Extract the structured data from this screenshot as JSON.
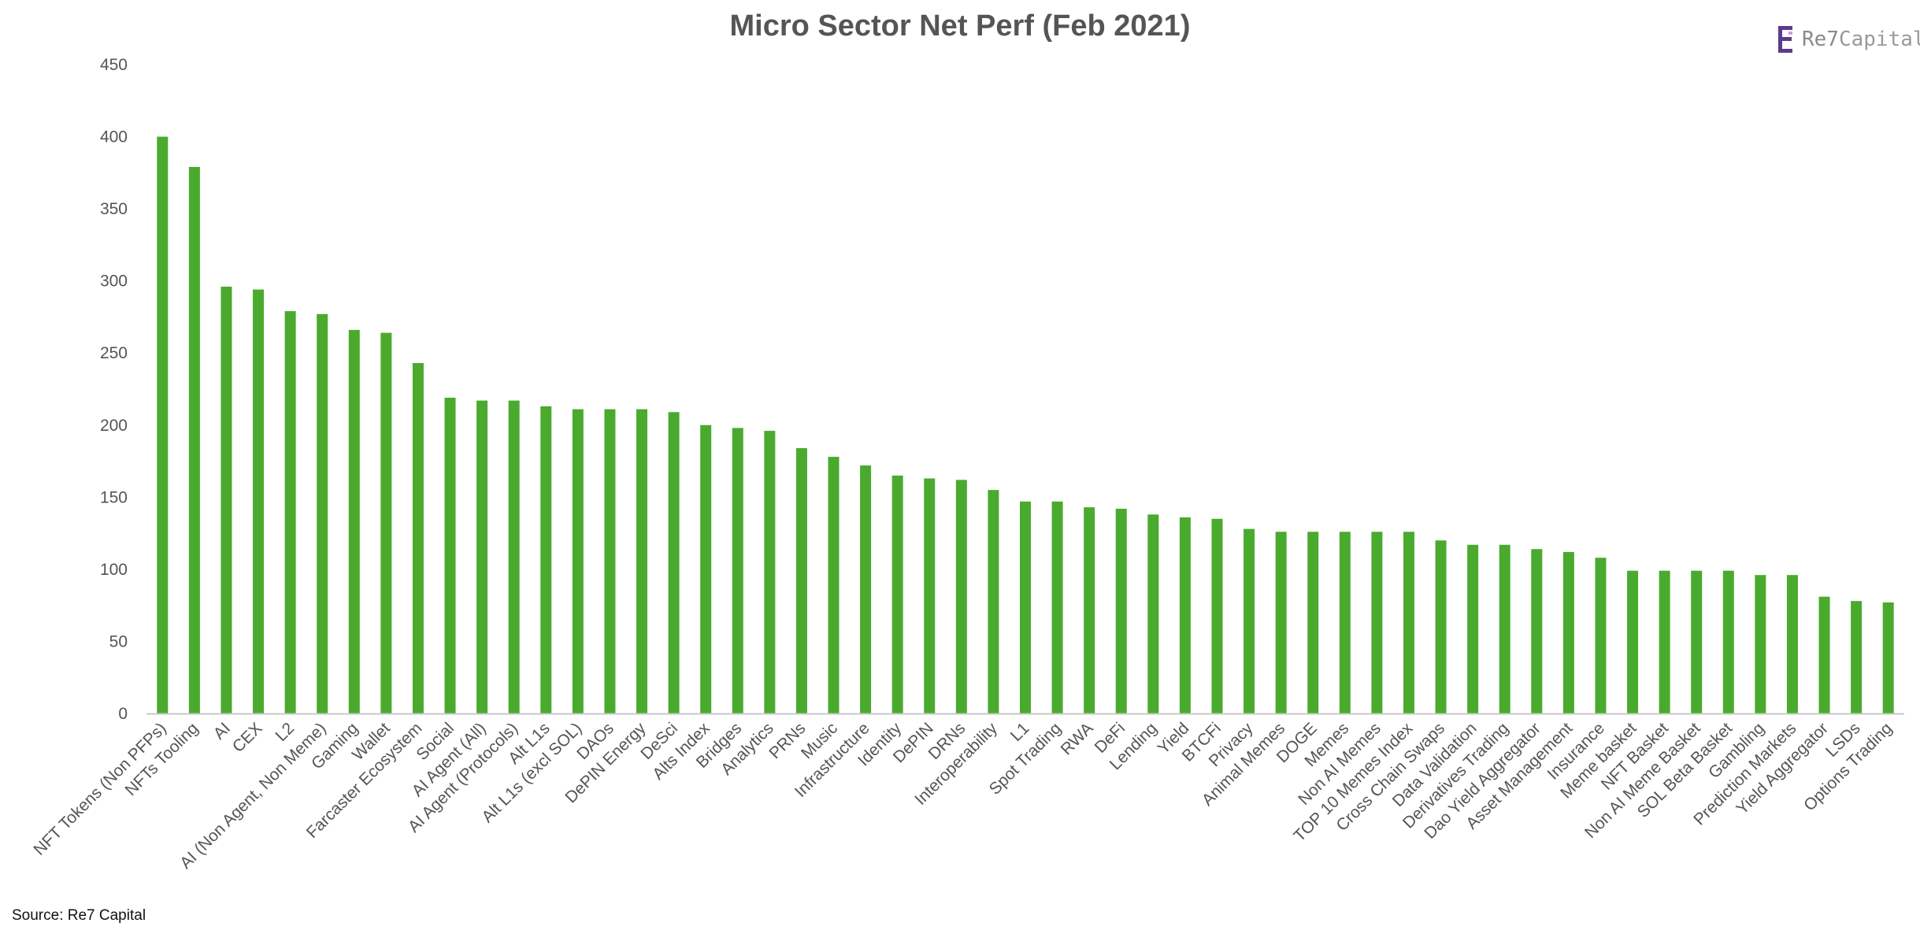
{
  "title": "Micro Sector Net Perf (Feb 2021)",
  "logo": {
    "brand_prefix": "Re7",
    "brand_suffix": "Capital",
    "icon": "re7-logo-icon"
  },
  "source": "Source: Re7 Capital",
  "colors": {
    "bar": "#4aaa2e",
    "axis": "#c8c8c8",
    "text": "#555555",
    "logo_purple": "#5b3b8c"
  },
  "chart_data": {
    "type": "bar",
    "title": "Micro Sector Net Perf (Feb 2021)",
    "xlabel": "",
    "ylabel": "",
    "ylim": [
      0,
      450
    ],
    "yticks": [
      0,
      50,
      100,
      150,
      200,
      250,
      300,
      350,
      400,
      450
    ],
    "grid": false,
    "legend": "none",
    "categories": [
      "NFT Tokens (Non PFPs)",
      "NFTs Tooling",
      "AI",
      "CEX",
      "L2",
      "AI (Non Agent, Non Meme)",
      "Gaming",
      "Wallet",
      "Farcaster Ecosystem",
      "Social",
      "AI Agent (All)",
      "AI Agent (Protocols)",
      "Alt L1s",
      "Alt L1s (excl SOL)",
      "DAOs",
      "DePIN Energy",
      "DeSci",
      "Alts Index",
      "Bridges",
      "Analytics",
      "PRNs",
      "Music",
      "Infrastructure",
      "Identity",
      "DePIN",
      "DRNs",
      "Interoperability",
      "L1",
      "Spot Trading",
      "RWA",
      "DeFi",
      "Lending",
      "Yield",
      "BTCFi",
      "Privacy",
      "Animal Memes",
      "DOGE",
      "Memes",
      "Non AI Memes",
      "TOP 10 Memes Index",
      "Cross Chain Swaps",
      "Data Validation",
      "Derivatives Trading",
      "Dao Yield Aggregator",
      "Asset Management",
      "Insurance",
      "Meme basket",
      "NFT Basket",
      "Non AI Meme Basket",
      "SOL Beta Basket",
      "Gambling",
      "Prediction Markets",
      "Yield Aggregator",
      "LSDs",
      "Options Trading"
    ],
    "values": [
      400,
      379,
      296,
      294,
      279,
      277,
      266,
      264,
      243,
      219,
      217,
      217,
      213,
      211,
      211,
      211,
      209,
      200,
      198,
      196,
      184,
      178,
      172,
      165,
      163,
      162,
      155,
      147,
      147,
      143,
      142,
      138,
      136,
      135,
      128,
      126,
      126,
      126,
      126,
      126,
      120,
      117,
      117,
      114,
      112,
      108,
      99,
      99,
      99,
      99,
      96,
      96,
      81,
      78,
      77
    ]
  }
}
